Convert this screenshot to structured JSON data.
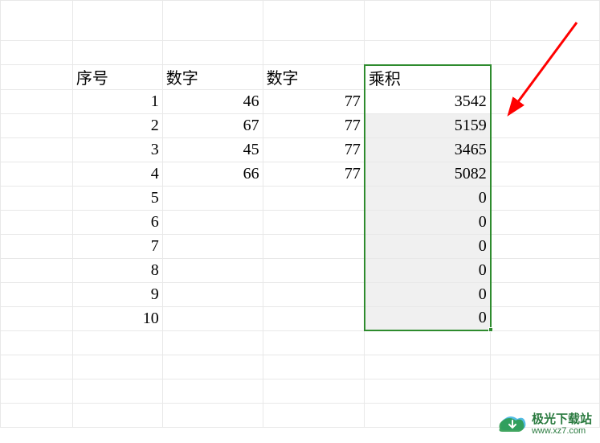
{
  "table": {
    "headers": {
      "col_b": "序号",
      "col_c": "数字",
      "col_d": "数字",
      "col_e": "乘积"
    },
    "rows": [
      {
        "seq": "1",
        "num1": "46",
        "num2": "77",
        "product": "3542"
      },
      {
        "seq": "2",
        "num1": "67",
        "num2": "77",
        "product": "5159"
      },
      {
        "seq": "3",
        "num1": "45",
        "num2": "77",
        "product": "3465"
      },
      {
        "seq": "4",
        "num1": "66",
        "num2": "77",
        "product": "5082"
      },
      {
        "seq": "5",
        "num1": "",
        "num2": "",
        "product": "0"
      },
      {
        "seq": "6",
        "num1": "",
        "num2": "",
        "product": "0"
      },
      {
        "seq": "7",
        "num1": "",
        "num2": "",
        "product": "0"
      },
      {
        "seq": "8",
        "num1": "",
        "num2": "",
        "product": "0"
      },
      {
        "seq": "9",
        "num1": "",
        "num2": "",
        "product": "0"
      },
      {
        "seq": "10",
        "num1": "",
        "num2": "",
        "product": "0"
      }
    ],
    "colors": {
      "cell_border": "#e8e8e8",
      "selection_border": "#2e8b2e",
      "selection_fill": "#f0f0f0",
      "active_cell_fill": "#ffffff",
      "text": "#000000",
      "background": "#ffffff"
    },
    "fontsize": 20
  },
  "arrow": {
    "color": "#ff0000",
    "stroke_width": 3
  },
  "watermark": {
    "title": "极光下载站",
    "url": "www.xz7.com",
    "title_color": "#2a7a3f",
    "logo_color1": "#2e9b4f",
    "logo_color2": "#36b1e0"
  }
}
